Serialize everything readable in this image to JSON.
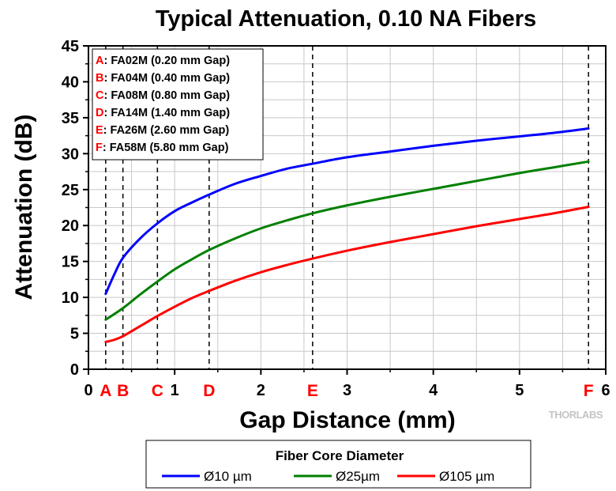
{
  "chart_data": {
    "type": "line",
    "title": "Typical Attenuation, 0.10 NA Fibers",
    "xlabel": "Gap Distance (mm)",
    "ylabel": "Attenuation (dB)",
    "xlim": [
      0,
      6
    ],
    "ylim": [
      0,
      45
    ],
    "x_ticks": [
      0,
      1,
      2,
      3,
      4,
      5,
      6
    ],
    "y_ticks": [
      0,
      5,
      10,
      15,
      20,
      25,
      30,
      35,
      40,
      45
    ],
    "grid": true,
    "gap_markers": [
      {
        "letter": "A",
        "x": 0.2,
        "label": "FA02M (0.20 mm Gap)"
      },
      {
        "letter": "B",
        "x": 0.4,
        "label": "FA04M (0.40 mm Gap)"
      },
      {
        "letter": "C",
        "x": 0.8,
        "label": "FA08M (0.80 mm Gap)"
      },
      {
        "letter": "D",
        "x": 1.4,
        "label": "FA14M (1.40 mm Gap)"
      },
      {
        "letter": "E",
        "x": 2.6,
        "label": "FA26M (2.60 mm Gap)"
      },
      {
        "letter": "F",
        "x": 5.8,
        "label": "FA58M (5.80 mm Gap)"
      }
    ],
    "legend_title": "Fiber Core Diameter",
    "legend_position": "bottom",
    "series": [
      {
        "name": "Ø10 µm",
        "color": "#0000ff",
        "x": [
          0.2,
          0.3,
          0.4,
          0.6,
          0.8,
          1.0,
          1.2,
          1.4,
          1.7,
          2.0,
          2.3,
          2.6,
          3.0,
          3.5,
          4.0,
          4.5,
          5.0,
          5.4,
          5.8
        ],
        "y": [
          10.5,
          13.2,
          15.5,
          18.2,
          20.3,
          22.0,
          23.2,
          24.3,
          25.8,
          26.9,
          27.9,
          28.6,
          29.5,
          30.3,
          31.1,
          31.8,
          32.4,
          32.9,
          33.5
        ]
      },
      {
        "name": "Ø25µm",
        "color": "#008000",
        "x": [
          0.2,
          0.4,
          0.6,
          0.8,
          1.0,
          1.2,
          1.4,
          1.7,
          2.0,
          2.3,
          2.6,
          3.0,
          3.5,
          4.0,
          4.5,
          5.0,
          5.4,
          5.8
        ],
        "y": [
          6.9,
          8.5,
          10.4,
          12.2,
          13.9,
          15.3,
          16.6,
          18.2,
          19.6,
          20.7,
          21.7,
          22.8,
          24.0,
          25.1,
          26.2,
          27.3,
          28.1,
          28.9
        ]
      },
      {
        "name": "Ø105 µm",
        "color": "#ff0000",
        "x": [
          0.2,
          0.3,
          0.4,
          0.6,
          0.8,
          1.0,
          1.2,
          1.4,
          1.7,
          2.0,
          2.3,
          2.6,
          3.0,
          3.5,
          4.0,
          4.5,
          5.0,
          5.4,
          5.8
        ],
        "y": [
          3.8,
          4.1,
          4.6,
          6.0,
          7.4,
          8.7,
          9.9,
          10.9,
          12.3,
          13.5,
          14.5,
          15.4,
          16.5,
          17.7,
          18.8,
          19.9,
          20.9,
          21.7,
          22.6
        ]
      }
    ]
  },
  "brand_logo_text": "THORLABS",
  "colors": {
    "letter_red": "#ff0000",
    "grid": "#c8c8c8",
    "background": "#ffffff"
  }
}
